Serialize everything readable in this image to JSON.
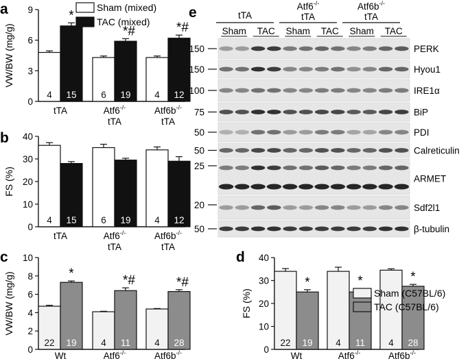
{
  "panels": {
    "a": "a",
    "b": "b",
    "c": "c",
    "d": "d",
    "e": "e"
  },
  "legend_top": {
    "sham": "Sham (mixed)",
    "tac": "TAC (mixed)"
  },
  "legend_bottom": {
    "sham": "Sham (C57BL/6)",
    "tac": "TAC (C57BL/6)"
  },
  "chart_data": [
    {
      "panel": "a",
      "type": "bar",
      "ylabel": "VW/BW (mg/g)",
      "ylim": [
        0,
        9
      ],
      "yticks": [
        "0",
        "3",
        "6",
        "9"
      ],
      "categories": [
        "tTA",
        "Atf6-/- tTA",
        "Atf6b-/- tTA"
      ],
      "category_main": [
        "tTA",
        "Atf6",
        "Atf6b"
      ],
      "category_sup": [
        "",
        "-/-",
        "-/-"
      ],
      "category_second": [
        "",
        "tTA",
        "tTA"
      ],
      "series": [
        {
          "name": "Sham (mixed)",
          "values": [
            4.8,
            4.3,
            4.3
          ],
          "err": [
            0.15,
            0.15,
            0.15
          ],
          "n": [
            "4",
            "6",
            "4"
          ]
        },
        {
          "name": "TAC (mixed)",
          "values": [
            7.4,
            5.9,
            6.2
          ],
          "err": [
            0.3,
            0.25,
            0.3
          ],
          "n": [
            "15",
            "19",
            "12"
          ]
        }
      ],
      "annotations": [
        "*",
        "*#",
        "*#"
      ]
    },
    {
      "panel": "b",
      "type": "bar",
      "ylabel": "FS (%)",
      "ylim": [
        0,
        40
      ],
      "yticks": [
        "0",
        "10",
        "20",
        "30",
        "40"
      ],
      "categories": [
        "tTA",
        "Atf6-/- tTA",
        "Atf6b-/- tTA"
      ],
      "category_main": [
        "tTA",
        "Atf6",
        "Atf6b"
      ],
      "category_sup": [
        "",
        "-/-",
        "-/-"
      ],
      "category_second": [
        "",
        "tTA",
        "tTA"
      ],
      "series": [
        {
          "name": "Sham (mixed)",
          "values": [
            36,
            35,
            34
          ],
          "err": [
            1.2,
            1.5,
            1.3
          ],
          "n": [
            "4",
            "6",
            "4"
          ]
        },
        {
          "name": "TAC (mixed)",
          "values": [
            28,
            29.5,
            29
          ],
          "err": [
            0.8,
            0.8,
            2.0
          ],
          "n": [
            "15",
            "19",
            "12"
          ]
        }
      ],
      "annotations": [
        "",
        "",
        ""
      ]
    },
    {
      "panel": "c",
      "type": "bar",
      "ylabel": "VW/BW (mg/g)",
      "ylim": [
        0,
        10
      ],
      "yticks": [
        "0",
        "2",
        "4",
        "6",
        "8",
        "10"
      ],
      "categories": [
        "Wt",
        "Atf6-/-",
        "Atf6b-/-"
      ],
      "category_main": [
        "Wt",
        "Atf6",
        "Atf6b"
      ],
      "category_sup": [
        "",
        "-/-",
        "-/-"
      ],
      "category_second": [
        "",
        "",
        ""
      ],
      "series": [
        {
          "name": "Sham (C57BL/6)",
          "values": [
            4.7,
            4.1,
            4.4
          ],
          "err": [
            0.1,
            0.05,
            0.05
          ],
          "n": [
            "22",
            "4",
            "4"
          ]
        },
        {
          "name": "TAC (C57BL/6)",
          "values": [
            7.3,
            6.4,
            6.3
          ],
          "err": [
            0.15,
            0.3,
            0.2
          ],
          "n": [
            "19",
            "11",
            "28"
          ]
        }
      ],
      "annotations": [
        "*",
        "*#",
        "*#"
      ]
    },
    {
      "panel": "d",
      "type": "bar",
      "ylabel": "FS (%)",
      "ylim": [
        0,
        40
      ],
      "yticks": [
        "0",
        "10",
        "20",
        "30",
        "40"
      ],
      "categories": [
        "Wt",
        "Atf6-/-",
        "Atf6b-/-"
      ],
      "category_main": [
        "Wt",
        "Atf6",
        "Atf6b"
      ],
      "category_sup": [
        "",
        "-/-",
        "-/-"
      ],
      "category_second": [
        "",
        "",
        ""
      ],
      "series": [
        {
          "name": "Sham (C57BL/6)",
          "values": [
            34,
            34,
            34.5
          ],
          "err": [
            1.2,
            1.8,
            0.6
          ],
          "n": [
            "22",
            "4",
            "4"
          ]
        },
        {
          "name": "TAC (C57BL/6)",
          "values": [
            25,
            25,
            27.5
          ],
          "err": [
            1.0,
            1.5,
            0.8
          ],
          "n": [
            "19",
            "11",
            "28"
          ]
        }
      ],
      "annotations": [
        "*",
        "*",
        "*"
      ]
    }
  ],
  "blot": {
    "groups": [
      {
        "main": "tTA",
        "sup": "",
        "second": ""
      },
      {
        "main": "Atf6",
        "sup": "-/-",
        "second": "tTA"
      },
      {
        "main": "Atf6b",
        "sup": "-/-",
        "second": "tTA"
      }
    ],
    "conditions": [
      "Sham",
      "TAC",
      "Sham",
      "TAC",
      "Sham",
      "TAC"
    ],
    "proteins": [
      "PERK",
      "Hyou1",
      "IRE1α",
      "BiP",
      "PDI",
      "Calreticulin",
      "ARMET",
      "Sdf2l1",
      "β-tubulin"
    ],
    "markers": [
      "150",
      "150",
      "100",
      "75",
      "50",
      "50",
      "25",
      "20",
      "50"
    ]
  }
}
